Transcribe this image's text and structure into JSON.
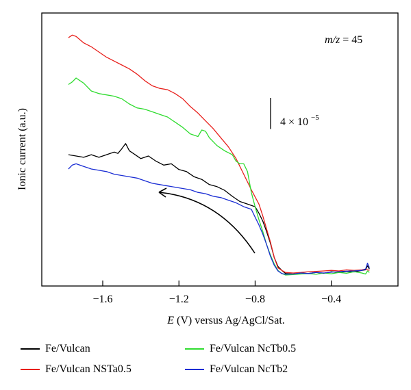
{
  "chart_data": {
    "type": "line",
    "xlabel_var": "E",
    "xlabel_unit": "(V) versus Ag/AgCl/Sat.",
    "ylabel": "Ionic current (a.u.)",
    "xlim": [
      -1.92,
      -0.05
    ],
    "ylim": [
      0,
      1.05
    ],
    "x_ticks": [
      -1.6,
      -1.2,
      -0.8,
      -0.4
    ],
    "x_tick_labels": [
      "−1.6",
      "−1.2",
      "−0.8",
      "−0.4"
    ],
    "annotation_label": "m/z",
    "annotation_value": "= 45",
    "scale_bar_label": "4 × 10",
    "scale_bar_exp": "−5",
    "scale_bar_value": 0.12,
    "series": [
      {
        "name": "Fe/Vulcan",
        "color": "#000000",
        "x": [
          -1.78,
          -1.74,
          -1.7,
          -1.66,
          -1.62,
          -1.58,
          -1.54,
          -1.52,
          -1.5,
          -1.48,
          -1.46,
          -1.44,
          -1.4,
          -1.36,
          -1.32,
          -1.28,
          -1.24,
          -1.2,
          -1.16,
          -1.12,
          -1.08,
          -1.04,
          -1.0,
          -0.96,
          -0.92,
          -0.88,
          -0.84,
          -0.8,
          -0.78,
          -0.76,
          -0.74,
          -0.72,
          -0.7,
          -0.68,
          -0.66,
          -0.64,
          -0.6,
          -0.56,
          -0.52,
          -0.48,
          -0.44,
          -0.4,
          -0.36,
          -0.32,
          -0.28,
          -0.24,
          -0.22,
          -0.21,
          -0.2
        ],
        "y": [
          0.505,
          0.5,
          0.495,
          0.505,
          0.495,
          0.505,
          0.515,
          0.51,
          0.528,
          0.548,
          0.52,
          0.51,
          0.49,
          0.5,
          0.48,
          0.465,
          0.47,
          0.448,
          0.44,
          0.42,
          0.41,
          0.39,
          0.382,
          0.368,
          0.345,
          0.325,
          0.315,
          0.305,
          0.28,
          0.25,
          0.21,
          0.165,
          0.11,
          0.075,
          0.06,
          0.048,
          0.046,
          0.05,
          0.048,
          0.052,
          0.049,
          0.055,
          0.052,
          0.056,
          0.054,
          0.06,
          0.062,
          0.078,
          0.065
        ]
      },
      {
        "name": "Fe/Vulcan NSTa0.5",
        "color": "#e8201c",
        "x": [
          -1.78,
          -1.76,
          -1.74,
          -1.7,
          -1.66,
          -1.62,
          -1.58,
          -1.54,
          -1.5,
          -1.46,
          -1.42,
          -1.38,
          -1.34,
          -1.3,
          -1.26,
          -1.22,
          -1.18,
          -1.14,
          -1.1,
          -1.06,
          -1.02,
          -0.98,
          -0.94,
          -0.9,
          -0.86,
          -0.82,
          -0.78,
          -0.76,
          -0.74,
          -0.72,
          -0.7,
          -0.68,
          -0.66,
          -0.64,
          -0.6,
          -0.56,
          -0.52,
          -0.48,
          -0.44,
          -0.4,
          -0.36,
          -0.32,
          -0.28,
          -0.24,
          -0.22,
          -0.21,
          -0.2
        ],
        "y": [
          0.955,
          0.965,
          0.96,
          0.935,
          0.92,
          0.9,
          0.88,
          0.865,
          0.85,
          0.835,
          0.815,
          0.79,
          0.77,
          0.76,
          0.755,
          0.74,
          0.72,
          0.69,
          0.665,
          0.635,
          0.605,
          0.57,
          0.535,
          0.49,
          0.43,
          0.37,
          0.315,
          0.27,
          0.22,
          0.17,
          0.11,
          0.07,
          0.06,
          0.052,
          0.05,
          0.052,
          0.055,
          0.056,
          0.058,
          0.06,
          0.058,
          0.062,
          0.06,
          0.062,
          0.065,
          0.062,
          0.06
        ]
      },
      {
        "name": "Fe/Vulcan NcTb0.5",
        "color": "#2fdc2f",
        "x": [
          -1.78,
          -1.76,
          -1.74,
          -1.72,
          -1.7,
          -1.66,
          -1.62,
          -1.58,
          -1.54,
          -1.5,
          -1.46,
          -1.42,
          -1.38,
          -1.34,
          -1.3,
          -1.26,
          -1.22,
          -1.18,
          -1.14,
          -1.1,
          -1.08,
          -1.06,
          -1.04,
          -1.0,
          -0.96,
          -0.92,
          -0.9,
          -0.88,
          -0.86,
          -0.84,
          -0.82,
          -0.8,
          -0.78,
          -0.76,
          -0.74,
          -0.72,
          -0.7,
          -0.68,
          -0.66,
          -0.64,
          -0.6,
          -0.56,
          -0.52,
          -0.48,
          -0.44,
          -0.4,
          -0.36,
          -0.32,
          -0.28,
          -0.24,
          -0.22,
          -0.21,
          -0.2
        ],
        "y": [
          0.775,
          0.785,
          0.8,
          0.79,
          0.78,
          0.75,
          0.74,
          0.735,
          0.73,
          0.72,
          0.7,
          0.685,
          0.68,
          0.67,
          0.66,
          0.65,
          0.63,
          0.61,
          0.585,
          0.575,
          0.6,
          0.595,
          0.57,
          0.54,
          0.52,
          0.505,
          0.48,
          0.47,
          0.47,
          0.44,
          0.36,
          0.305,
          0.255,
          0.21,
          0.16,
          0.12,
          0.085,
          0.06,
          0.048,
          0.042,
          0.044,
          0.046,
          0.048,
          0.045,
          0.05,
          0.047,
          0.052,
          0.049,
          0.055,
          0.05,
          0.046,
          0.058,
          0.052
        ]
      },
      {
        "name": "Fe/Vulcan NcTb2",
        "color": "#1a2dd4",
        "x": [
          -1.78,
          -1.76,
          -1.74,
          -1.7,
          -1.66,
          -1.62,
          -1.58,
          -1.54,
          -1.5,
          -1.46,
          -1.42,
          -1.38,
          -1.34,
          -1.3,
          -1.26,
          -1.22,
          -1.18,
          -1.14,
          -1.1,
          -1.06,
          -1.02,
          -0.98,
          -0.94,
          -0.9,
          -0.86,
          -0.82,
          -0.8,
          -0.78,
          -0.76,
          -0.74,
          -0.72,
          -0.7,
          -0.68,
          -0.66,
          -0.64,
          -0.6,
          -0.56,
          -0.52,
          -0.48,
          -0.44,
          -0.4,
          -0.36,
          -0.32,
          -0.28,
          -0.24,
          -0.22,
          -0.21,
          -0.2
        ],
        "y": [
          0.45,
          0.465,
          0.47,
          0.46,
          0.45,
          0.445,
          0.44,
          0.43,
          0.425,
          0.42,
          0.415,
          0.405,
          0.395,
          0.39,
          0.385,
          0.38,
          0.375,
          0.37,
          0.36,
          0.355,
          0.345,
          0.34,
          0.33,
          0.32,
          0.305,
          0.295,
          0.265,
          0.235,
          0.2,
          0.16,
          0.115,
          0.08,
          0.058,
          0.048,
          0.045,
          0.046,
          0.05,
          0.048,
          0.052,
          0.05,
          0.053,
          0.055,
          0.057,
          0.058,
          0.06,
          0.065,
          0.088,
          0.07
        ]
      }
    ]
  }
}
